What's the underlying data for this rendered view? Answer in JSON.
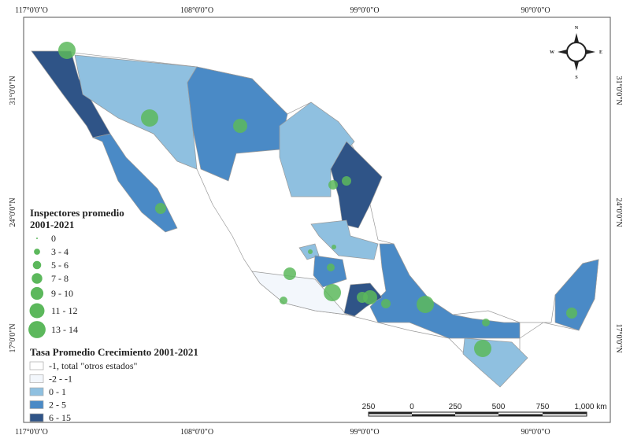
{
  "graticule": {
    "top": [
      "117°0'0\"O",
      "108°0'0\"O",
      "99°0'0\"O",
      "90°0'0\"O"
    ],
    "bottom": [
      "117°0'0\"O",
      "108°0'0\"O",
      "99°0'0\"O",
      "90°0'0\"O"
    ],
    "left": [
      "31°0'0\"N",
      "24°0'0\"N",
      "17°0'0\"N"
    ],
    "right": [
      "31°0'0\"N",
      "24°0'0\"N",
      "17°0'0\"N"
    ]
  },
  "compass": {
    "n": "N",
    "s": "S",
    "e": "E",
    "w": "W"
  },
  "legend_size": {
    "title": [
      "Inspectores promedio",
      "2001-2021"
    ],
    "items": [
      "0",
      "3 - 4",
      "5 - 6",
      "7 - 8",
      "9 - 10",
      "11 - 12",
      "13 - 14"
    ],
    "color": "#5cb85c"
  },
  "legend_color": {
    "title": "Tasa Promedio Crecimiento 2001-2021",
    "items": [
      {
        "label": "-1, total \"otros estados\"",
        "color": "#ffffff"
      },
      {
        "label": "-2 - -1",
        "color": "#f3f7fc"
      },
      {
        "label": "0 - 1",
        "color": "#8fc0e0"
      },
      {
        "label": "2 - 5",
        "color": "#4a8ac6"
      },
      {
        "label": "6 - 15",
        "color": "#2f5487"
      }
    ]
  },
  "scale_bar": {
    "labels": [
      "250",
      "0",
      "250",
      "500",
      "750",
      "1,000 km"
    ]
  }
}
